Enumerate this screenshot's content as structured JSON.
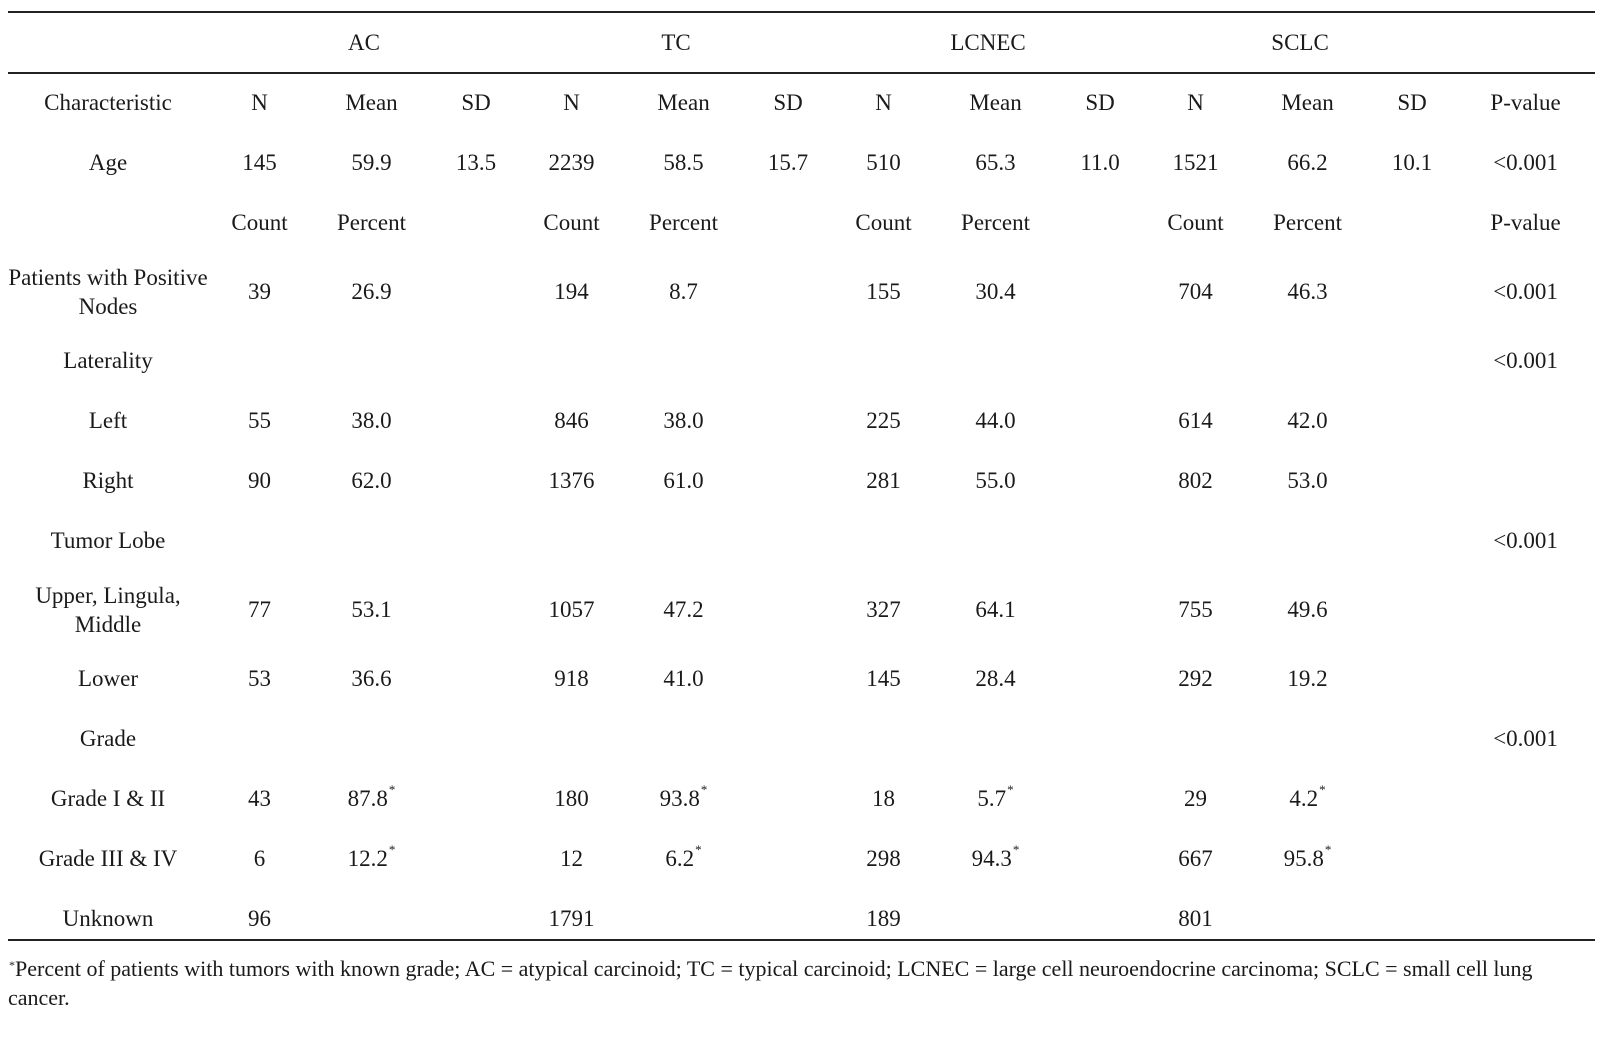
{
  "groups": [
    "AC",
    "TC",
    "LCNEC",
    "SCLC"
  ],
  "header_row": [
    "Characteristic",
    "N",
    "Mean",
    "SD",
    "N",
    "Mean",
    "SD",
    "N",
    "Mean",
    "SD",
    "N",
    "Mean",
    "SD",
    "P-value"
  ],
  "age_row": [
    "Age",
    "145",
    "59.9",
    "13.5",
    "2239",
    "58.5",
    "15.7",
    "510",
    "65.3",
    "11.0",
    "1521",
    "66.2",
    "10.1",
    "<0.001"
  ],
  "subheader_row": [
    "",
    "Count",
    "Percent",
    "",
    "Count",
    "Percent",
    "",
    "Count",
    "Percent",
    "",
    "Count",
    "Percent",
    "",
    "P-value"
  ],
  "rows": [
    {
      "label": "Patients with Positive Nodes",
      "cells": [
        "39",
        "26.9",
        "",
        "194",
        "8.7",
        "",
        "155",
        "30.4",
        "",
        "704",
        "46.3",
        "",
        "<0.001"
      ]
    },
    {
      "label": "Laterality",
      "cells": [
        "",
        "",
        "",
        "",
        "",
        "",
        "",
        "",
        "",
        "",
        "",
        "",
        "<0.001"
      ]
    },
    {
      "label": "Left",
      "cells": [
        "55",
        "38.0",
        "",
        "846",
        "38.0",
        "",
        "225",
        "44.0",
        "",
        "614",
        "42.0",
        "",
        ""
      ]
    },
    {
      "label": "Right",
      "cells": [
        "90",
        "62.0",
        "",
        "1376",
        "61.0",
        "",
        "281",
        "55.0",
        "",
        "802",
        "53.0",
        "",
        ""
      ]
    },
    {
      "label": "Tumor Lobe",
      "cells": [
        "",
        "",
        "",
        "",
        "",
        "",
        "",
        "",
        "",
        "",
        "",
        "",
        "<0.001"
      ]
    },
    {
      "label": "Upper, Lingula, Middle",
      "cells": [
        "77",
        "53.1",
        "",
        "1057",
        "47.2",
        "",
        "327",
        "64.1",
        "",
        "755",
        "49.6",
        "",
        ""
      ]
    },
    {
      "label": "Lower",
      "cells": [
        "53",
        "36.6",
        "",
        "918",
        "41.0",
        "",
        "145",
        "28.4",
        "",
        "292",
        "19.2",
        "",
        ""
      ]
    },
    {
      "label": "Grade",
      "cells": [
        "",
        "",
        "",
        "",
        "",
        "",
        "",
        "",
        "",
        "",
        "",
        "",
        "<0.001"
      ]
    },
    {
      "label": "Grade I & II",
      "cells": [
        "43",
        "87.8",
        "",
        "180",
        "93.8",
        "",
        "18",
        "5.7",
        "",
        "29",
        "4.2",
        "",
        ""
      ]
    },
    {
      "label": "Grade III & IV",
      "cells": [
        "6",
        "12.2",
        "",
        "12",
        "6.2",
        "",
        "298",
        "94.3",
        "",
        "667",
        "95.8",
        "",
        ""
      ]
    },
    {
      "label": "Unknown",
      "cells": [
        "96",
        "",
        "",
        "1791",
        "",
        "",
        "189",
        "",
        "",
        "801",
        "",
        "",
        ""
      ]
    }
  ],
  "footnote": {
    "marker": "*",
    "text": "Percent of patients with tumors with known grade; AC = atypical carcinoid; TC = typical carcinoid; LCNEC = large cell neuroendocrine carcinoma; SCLC = small cell lung cancer."
  }
}
